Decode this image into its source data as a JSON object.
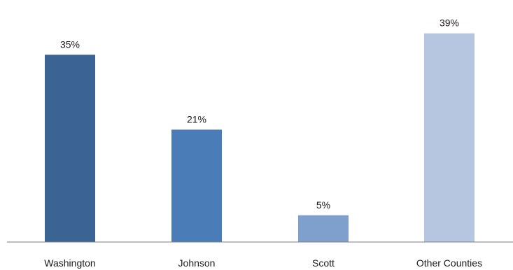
{
  "chart_data": {
    "type": "bar",
    "categories": [
      "Washington",
      "Johnson",
      "Scott",
      "Other Counties"
    ],
    "values": [
      35,
      21,
      5,
      39
    ],
    "value_labels": [
      "35%",
      "21%",
      "5%",
      "39%"
    ],
    "unit": "%",
    "title": "",
    "xlabel": "",
    "ylabel": "",
    "ylim": [
      0,
      40
    ],
    "grid": false,
    "legend": "none",
    "colors": [
      "#3b6495",
      "#4a7cb8",
      "#7f9fcd",
      "#b6c5e0"
    ],
    "axis_color": "#7f7f7f",
    "text_color": "#1a1a1a"
  }
}
